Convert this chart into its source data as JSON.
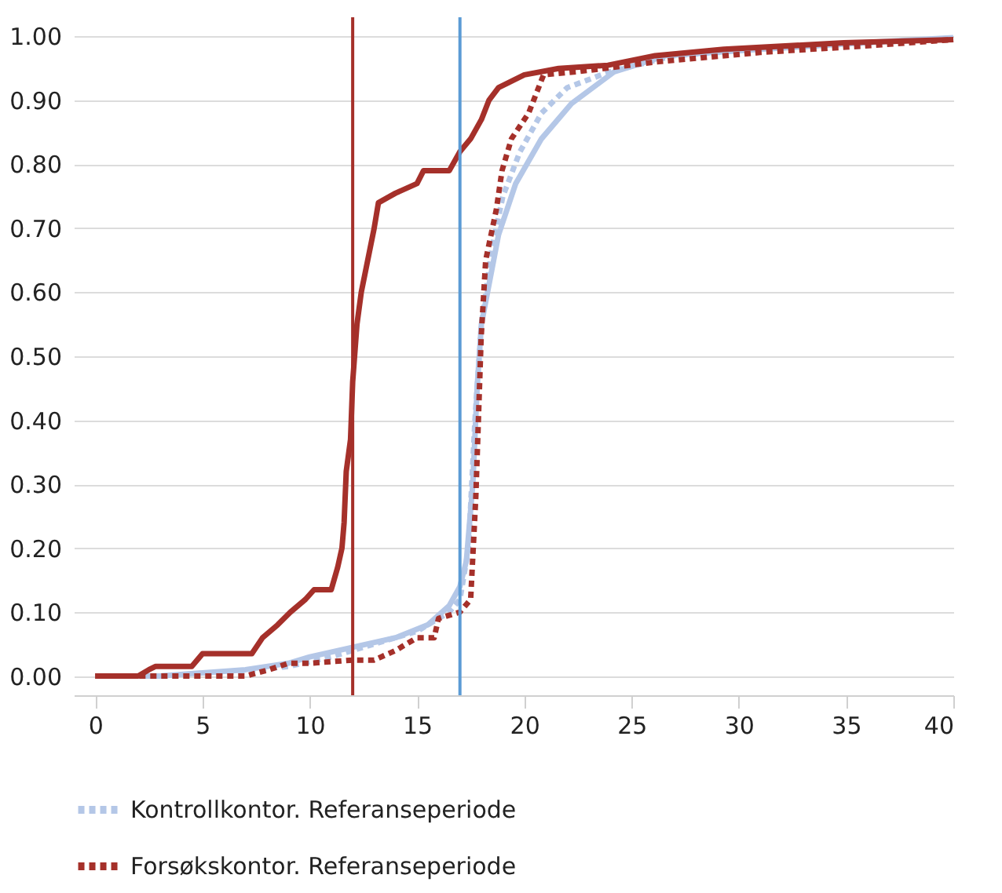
{
  "chart_data": {
    "type": "line",
    "xlim": [
      -1,
      40
    ],
    "xticks": [
      0,
      5,
      10,
      15,
      20,
      25,
      30,
      35,
      40
    ],
    "ylim": [
      -0.03,
      1.03
    ],
    "yticks": [
      {
        "value": 0,
        "label": "0.00"
      },
      {
        "value": 0.1,
        "label": "0.10"
      },
      {
        "value": 0.2,
        "label": "0.20"
      },
      {
        "value": 0.3,
        "label": "0.30"
      },
      {
        "value": 0.4,
        "label": "0.40"
      },
      {
        "value": 0.5,
        "label": "0.50"
      },
      {
        "value": 0.6,
        "label": "0.60"
      },
      {
        "value": 0.7,
        "label": "0.70"
      },
      {
        "value": 0.8,
        "label": "0.80"
      },
      {
        "value": 0.9,
        "label": "0.90"
      },
      {
        "value": 1,
        "label": "1.00"
      }
    ],
    "grid": "y",
    "legend": "bottom",
    "series": [
      {
        "color": "#b4c7e7",
        "line_style": "solid",
        "x": [
          0,
          3,
          5,
          7,
          9,
          10,
          12,
          14,
          15.5,
          16.5,
          17,
          17.3,
          17.6,
          17.8,
          18,
          18.8,
          19.6,
          20.8,
          22.2,
          24.2,
          26.6,
          31,
          35.8,
          40
        ],
        "values": [
          0,
          0,
          0.005,
          0.01,
          0.02,
          0.03,
          0.045,
          0.06,
          0.08,
          0.11,
          0.14,
          0.18,
          0.3,
          0.45,
          0.55,
          0.69,
          0.77,
          0.84,
          0.895,
          0.945,
          0.97,
          0.98,
          0.99,
          0.998
        ]
      },
      {
        "name": "Kontrollkontor. Referanseperiode",
        "color": "#b4c7e7",
        "line_style": "dotted",
        "x": [
          0,
          3,
          6,
          9,
          11,
          13,
          15,
          16.5,
          17,
          17.4,
          17.7,
          18,
          18.5,
          19,
          19.8,
          20.8,
          22,
          24,
          27,
          31,
          36,
          40
        ],
        "values": [
          0,
          0,
          0.005,
          0.015,
          0.03,
          0.05,
          0.07,
          0.1,
          0.12,
          0.2,
          0.4,
          0.55,
          0.67,
          0.75,
          0.82,
          0.88,
          0.92,
          0.945,
          0.97,
          0.98,
          0.99,
          0.997
        ]
      },
      {
        "color": "#a5302a",
        "line_style": "solid",
        "x": [
          0,
          2,
          2.5,
          2.8,
          4.5,
          5,
          7.3,
          7.8,
          8.5,
          9.1,
          9.8,
          10.2,
          11,
          11.3,
          11.5,
          11.6,
          11.7,
          11.9,
          12,
          12.2,
          12.4,
          12.7,
          13,
          13.2,
          14,
          15,
          15.3,
          16.5,
          17,
          17.5,
          18,
          18.35,
          18.8,
          20,
          21.6,
          23.9,
          26.1,
          29.3,
          34.9,
          40
        ],
        "values": [
          0,
          0,
          0.01,
          0.015,
          0.015,
          0.035,
          0.035,
          0.06,
          0.08,
          0.1,
          0.12,
          0.135,
          0.135,
          0.17,
          0.2,
          0.24,
          0.32,
          0.37,
          0.46,
          0.55,
          0.6,
          0.65,
          0.7,
          0.74,
          0.755,
          0.77,
          0.79,
          0.79,
          0.82,
          0.84,
          0.87,
          0.9,
          0.92,
          0.94,
          0.95,
          0.955,
          0.97,
          0.98,
          0.99,
          0.995
        ]
      },
      {
        "name": "Forsøkskontor. Referanseperiode",
        "color": "#a5302a",
        "line_style": "dotted",
        "x": [
          0,
          7,
          8.1,
          9,
          10,
          12,
          13,
          14,
          15,
          15.8,
          16,
          17,
          17.5,
          17.74,
          17.99,
          18.2,
          18.7,
          18.96,
          19.4,
          20.2,
          20.9,
          22.5,
          26.1,
          31,
          35.8,
          40
        ],
        "values": [
          0,
          0,
          0.01,
          0.02,
          0.02,
          0.025,
          0.025,
          0.04,
          0.06,
          0.06,
          0.09,
          0.1,
          0.12,
          0.28,
          0.53,
          0.65,
          0.73,
          0.79,
          0.84,
          0.88,
          0.94,
          0.945,
          0.96,
          0.975,
          0.985,
          0.995
        ]
      }
    ],
    "ref_lines": [
      {
        "axis": "x",
        "value": 12,
        "color": "#a5302a"
      },
      {
        "axis": "x",
        "value": 17,
        "color": "#5b9bd5"
      }
    ]
  }
}
